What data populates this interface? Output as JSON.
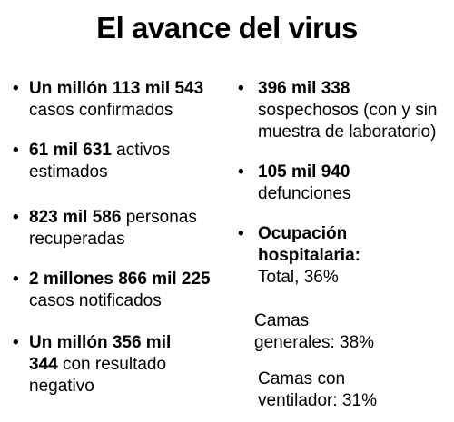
{
  "title": "El avance del virus",
  "left_items": [
    {
      "bold": "Un millón 113 mil 543",
      "rest": " casos confirmados"
    },
    {
      "bold": "61 mil 631",
      "rest": " activos estimados"
    },
    {
      "bold": "823 mil 586",
      "rest": " personas recuperadas"
    },
    {
      "bold": "2 millones 866 mil 225",
      "rest": " casos notificados"
    },
    {
      "bold": "Un millón 356 mil 344",
      "rest": " con resultado negativo"
    }
  ],
  "right_items": [
    {
      "bold": "396 mil 338",
      "rest": " sospechosos (con y sin muestra de laboratorio)"
    },
    {
      "bold": "105 mil 940",
      "rest": " defunciones"
    },
    {
      "bold": "Ocupación hospitalaria:",
      "rest": " Total, 36%"
    }
  ],
  "hospital": {
    "generales": "Camas generales: 38%",
    "ventilador": "Camas con ventilador: 31%"
  }
}
